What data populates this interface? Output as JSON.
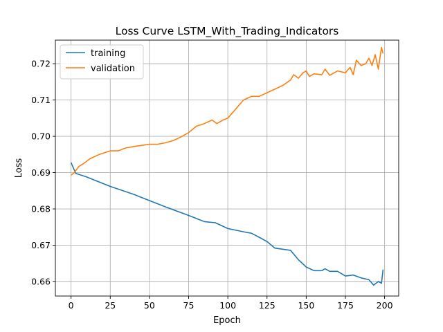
{
  "chart_data": {
    "type": "line",
    "title": "Loss Curve LSTM_With_Trading_Indicators",
    "xlabel": "Epoch",
    "ylabel": "Loss",
    "xlim": [
      -10,
      209
    ],
    "ylim": [
      0.656,
      0.7265
    ],
    "xticks": [
      0,
      25,
      50,
      75,
      100,
      125,
      150,
      175,
      200
    ],
    "yticks": [
      0.66,
      0.67,
      0.68,
      0.69,
      0.7,
      0.71,
      0.72
    ],
    "ytick_decimals": 2,
    "grid": true,
    "legend_position": "top-left",
    "series": [
      {
        "name": "training",
        "color": "#1f77b4",
        "points": [
          [
            0,
            0.6928
          ],
          [
            3,
            0.6898
          ],
          [
            10,
            0.6888
          ],
          [
            25,
            0.6862
          ],
          [
            40,
            0.684
          ],
          [
            50,
            0.6823
          ],
          [
            60,
            0.6806
          ],
          [
            75,
            0.6782
          ],
          [
            85,
            0.6765
          ],
          [
            92,
            0.6762
          ],
          [
            95,
            0.6756
          ],
          [
            100,
            0.6746
          ],
          [
            110,
            0.6737
          ],
          [
            115,
            0.6733
          ],
          [
            120,
            0.6722
          ],
          [
            125,
            0.671
          ],
          [
            130,
            0.6692
          ],
          [
            140,
            0.6686
          ],
          [
            145,
            0.666
          ],
          [
            150,
            0.664
          ],
          [
            155,
            0.663
          ],
          [
            160,
            0.663
          ],
          [
            162,
            0.6635
          ],
          [
            165,
            0.6628
          ],
          [
            170,
            0.6628
          ],
          [
            175,
            0.6615
          ],
          [
            180,
            0.6618
          ],
          [
            185,
            0.661
          ],
          [
            190,
            0.6605
          ],
          [
            193,
            0.659
          ],
          [
            196,
            0.66
          ],
          [
            198,
            0.6595
          ],
          [
            199,
            0.6633
          ]
        ]
      },
      {
        "name": "validation",
        "color": "#ff7f0e",
        "points": [
          [
            0,
            0.6893
          ],
          [
            2,
            0.69
          ],
          [
            5,
            0.6917
          ],
          [
            8,
            0.6925
          ],
          [
            12,
            0.6938
          ],
          [
            18,
            0.695
          ],
          [
            25,
            0.696
          ],
          [
            30,
            0.696
          ],
          [
            35,
            0.6968
          ],
          [
            40,
            0.6972
          ],
          [
            45,
            0.6975
          ],
          [
            50,
            0.6978
          ],
          [
            55,
            0.6978
          ],
          [
            60,
            0.6982
          ],
          [
            65,
            0.6988
          ],
          [
            70,
            0.6998
          ],
          [
            75,
            0.701
          ],
          [
            80,
            0.7028
          ],
          [
            85,
            0.7035
          ],
          [
            90,
            0.7045
          ],
          [
            93,
            0.7035
          ],
          [
            97,
            0.7045
          ],
          [
            100,
            0.705
          ],
          [
            105,
            0.7075
          ],
          [
            110,
            0.71
          ],
          [
            115,
            0.711
          ],
          [
            120,
            0.711
          ],
          [
            125,
            0.712
          ],
          [
            130,
            0.713
          ],
          [
            135,
            0.714
          ],
          [
            140,
            0.7155
          ],
          [
            142,
            0.717
          ],
          [
            145,
            0.716
          ],
          [
            148,
            0.7175
          ],
          [
            150,
            0.718
          ],
          [
            152,
            0.7165
          ],
          [
            155,
            0.7172
          ],
          [
            160,
            0.717
          ],
          [
            162,
            0.7185
          ],
          [
            165,
            0.7168
          ],
          [
            170,
            0.718
          ],
          [
            175,
            0.7175
          ],
          [
            178,
            0.719
          ],
          [
            180,
            0.717
          ],
          [
            182,
            0.721
          ],
          [
            185,
            0.7195
          ],
          [
            188,
            0.72
          ],
          [
            190,
            0.7215
          ],
          [
            192,
            0.7195
          ],
          [
            194,
            0.7225
          ],
          [
            196,
            0.7185
          ],
          [
            198,
            0.7245
          ],
          [
            199,
            0.7228
          ]
        ]
      }
    ]
  }
}
